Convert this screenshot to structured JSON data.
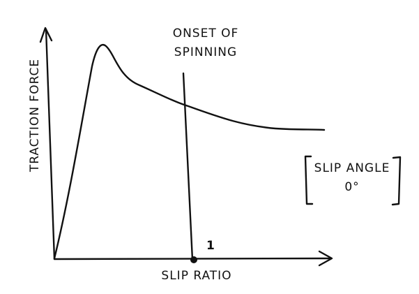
{
  "y_axis_label": "TRACTION FORCE",
  "x_axis_label": "SLIP RATIO",
  "annotation": {
    "lines": [
      "ONSET OF",
      "SPINNING"
    ]
  },
  "x_marker_label": "1",
  "condition": {
    "lines": [
      "SLIP ANGLE",
      "0°"
    ]
  }
}
